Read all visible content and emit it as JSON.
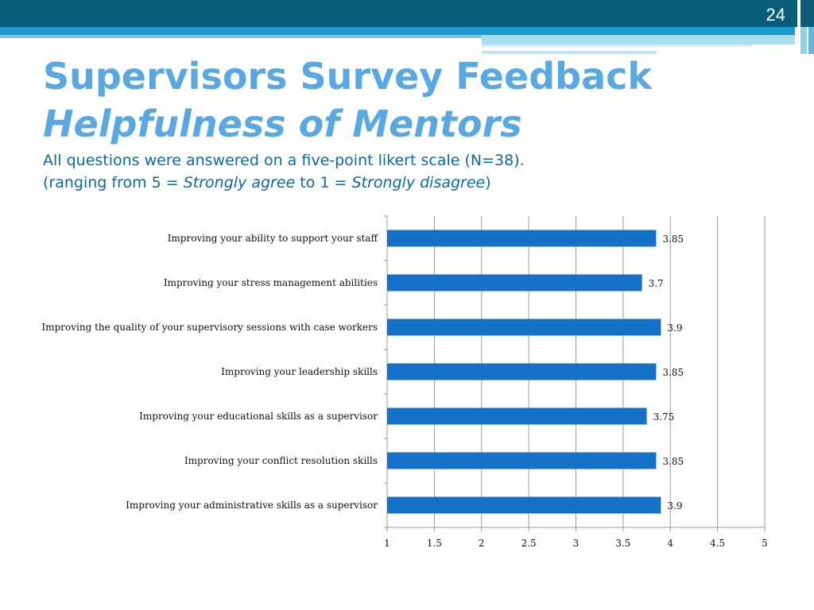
{
  "slide": {
    "number": "24",
    "title": "Supervisors Survey Feedback",
    "title_sub": "Helpfulness of Mentors",
    "subtitle_line1": "All questions were answered on a five-point likert scale (N=38).",
    "subtitle_line2_pre": "(ranging from 5 = ",
    "subtitle_line2_em1": "Strongly agree",
    "subtitle_line2_mid": " to 1 = ",
    "subtitle_line2_em2": "Strongly disagree",
    "subtitle_line2_post": ")"
  },
  "colors": {
    "bar": "#1570c8",
    "title": "#5aa8e2",
    "subtitle": "#0b6aa2",
    "header": "#0b5e7a",
    "grid": "#9a9a9a"
  },
  "chart_data": {
    "type": "bar",
    "orientation": "horizontal",
    "categories": [
      "Improving your ability to support your staff",
      "Improving your stress management abilities",
      "Improving the quality of your supervisory sessions with case workers",
      "Improving your leadership skills",
      "Improving your educational skills as a supervisor",
      "Improving your conflict resolution skills",
      "Improving your administrative skills as a supervisor"
    ],
    "values": [
      3.85,
      3.7,
      3.9,
      3.85,
      3.75,
      3.85,
      3.9
    ],
    "value_labels": [
      "3.85",
      "3.7",
      "3.9",
      "3.85",
      "3.75",
      "3.85",
      "3.9"
    ],
    "xlim": [
      1,
      5
    ],
    "ticks": [
      1,
      1.5,
      2,
      2.5,
      3,
      3.5,
      4,
      4.5,
      5
    ],
    "tick_labels": [
      "1",
      "1.5",
      "2",
      "2.5",
      "3",
      "3.5",
      "4",
      "4.5",
      "5"
    ],
    "grid": true,
    "legend": "none"
  }
}
